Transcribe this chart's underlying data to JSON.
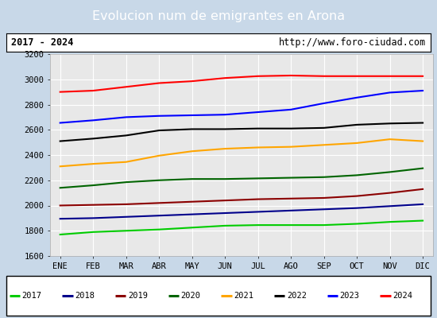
{
  "title": "Evolucion num de emigrantes en Arona",
  "subtitle_left": "2017 - 2024",
  "subtitle_right": "http://www.foro-ciudad.com",
  "months": [
    "ENE",
    "FEB",
    "MAR",
    "ABR",
    "MAY",
    "JUN",
    "JUL",
    "AGO",
    "SEP",
    "OCT",
    "NOV",
    "DIC"
  ],
  "ylim": [
    1600,
    3200
  ],
  "yticks": [
    1600,
    1800,
    2000,
    2200,
    2400,
    2600,
    2800,
    3000,
    3200
  ],
  "series": {
    "2017": {
      "color": "#00cc00",
      "data": [
        1770,
        1790,
        1800,
        1810,
        1825,
        1840,
        1845,
        1845,
        1845,
        1855,
        1870,
        1880
      ]
    },
    "2018": {
      "color": "#00008b",
      "data": [
        1895,
        1900,
        1910,
        1920,
        1930,
        1940,
        1950,
        1960,
        1970,
        1980,
        1995,
        2010
      ]
    },
    "2019": {
      "color": "#8b0000",
      "data": [
        2000,
        2005,
        2010,
        2020,
        2030,
        2040,
        2050,
        2055,
        2060,
        2075,
        2100,
        2130
      ]
    },
    "2020": {
      "color": "#006400",
      "data": [
        2140,
        2160,
        2185,
        2200,
        2210,
        2210,
        2215,
        2220,
        2225,
        2240,
        2265,
        2295
      ]
    },
    "2021": {
      "color": "#ffa500",
      "data": [
        2310,
        2330,
        2345,
        2395,
        2430,
        2450,
        2460,
        2465,
        2480,
        2495,
        2525,
        2510
      ]
    },
    "2022": {
      "color": "#000000",
      "data": [
        2510,
        2530,
        2555,
        2595,
        2605,
        2605,
        2610,
        2610,
        2615,
        2640,
        2650,
        2655
      ]
    },
    "2023": {
      "color": "#0000ff",
      "data": [
        2655,
        2675,
        2700,
        2710,
        2715,
        2720,
        2740,
        2760,
        2810,
        2855,
        2895,
        2910
      ]
    },
    "2024": {
      "color": "#ff0000",
      "data": [
        2900,
        2910,
        2940,
        2970,
        2985,
        3010,
        3025,
        3030,
        3025,
        3025,
        3025,
        3025
      ]
    }
  },
  "title_bg": "#5b9bd5",
  "title_color": "white",
  "plot_bg": "#e8e8e8",
  "outer_bg": "#c8d8e8",
  "legend_years": [
    "2017",
    "2018",
    "2019",
    "2020",
    "2021",
    "2022",
    "2023",
    "2024"
  ]
}
